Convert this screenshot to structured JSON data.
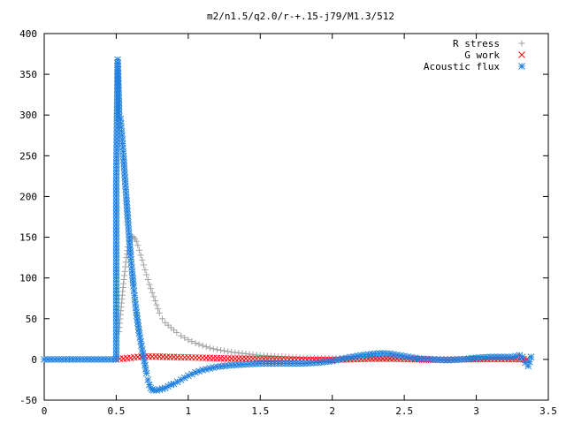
{
  "chart_data": {
    "type": "scatter",
    "title": "m2/n1.5/q2.0/r-+.15-j79/M1.3/512",
    "xlabel": "",
    "ylabel": "",
    "xlim": [
      0,
      3.5
    ],
    "ylim": [
      -50,
      400
    ],
    "xticks": [
      "0",
      "0.5",
      "1",
      "1.5",
      "2",
      "2.5",
      "3",
      "3.5"
    ],
    "yticks": [
      "-50",
      "0",
      "50",
      "100",
      "150",
      "200",
      "250",
      "300",
      "350",
      "400"
    ],
    "grid": false,
    "legend_position": "top-right",
    "series": [
      {
        "name": "R stress",
        "marker": "plus",
        "color": "#a0a0a0",
        "points": [
          [
            0.52,
            34
          ],
          [
            0.53,
            55
          ],
          [
            0.54,
            74
          ],
          [
            0.55,
            93
          ],
          [
            0.56,
            108
          ],
          [
            0.57,
            125
          ],
          [
            0.58,
            138
          ],
          [
            0.59,
            145
          ],
          [
            0.6,
            150
          ],
          [
            0.61,
            151
          ],
          [
            0.62,
            150
          ],
          [
            0.63,
            148
          ],
          [
            0.64,
            145
          ],
          [
            0.65,
            140
          ],
          [
            0.66,
            134
          ],
          [
            0.67,
            128
          ],
          [
            0.68,
            122
          ],
          [
            0.69,
            116
          ],
          [
            0.7,
            110
          ],
          [
            0.71,
            104
          ],
          [
            0.72,
            98
          ],
          [
            0.73,
            92
          ],
          [
            0.74,
            87
          ],
          [
            0.75,
            82
          ],
          [
            0.76,
            77
          ],
          [
            0.77,
            72
          ],
          [
            0.78,
            67
          ],
          [
            0.79,
            62
          ],
          [
            0.8,
            57
          ],
          [
            0.82,
            50
          ],
          [
            0.84,
            45
          ],
          [
            0.86,
            42
          ],
          [
            0.88,
            39
          ],
          [
            0.9,
            36
          ],
          [
            0.92,
            33
          ],
          [
            0.95,
            29
          ],
          [
            1.0,
            24
          ],
          [
            1.05,
            20
          ],
          [
            1.1,
            17
          ],
          [
            1.15,
            14
          ],
          [
            1.2,
            12
          ],
          [
            1.3,
            9
          ],
          [
            1.4,
            7
          ],
          [
            1.5,
            5
          ],
          [
            1.6,
            4
          ],
          [
            1.7,
            3
          ],
          [
            1.8,
            2
          ],
          [
            1.9,
            1.5
          ],
          [
            2.0,
            1.2
          ],
          [
            2.2,
            1
          ],
          [
            2.4,
            0.8
          ],
          [
            2.6,
            0.6
          ],
          [
            2.8,
            0.5
          ],
          [
            3.0,
            0.4
          ],
          [
            3.2,
            0.3
          ],
          [
            3.35,
            0.2
          ]
        ]
      },
      {
        "name": "G work",
        "marker": "cross",
        "color": "#ff0000",
        "points": [
          [
            0.5,
            0.5
          ],
          [
            0.55,
            1
          ],
          [
            0.6,
            2
          ],
          [
            0.65,
            3
          ],
          [
            0.7,
            3.5
          ],
          [
            0.75,
            3.5
          ],
          [
            0.8,
            3.5
          ],
          [
            0.85,
            3
          ],
          [
            0.9,
            3
          ],
          [
            0.95,
            2.5
          ],
          [
            1.0,
            2.5
          ],
          [
            1.1,
            2
          ],
          [
            1.2,
            1.5
          ],
          [
            1.3,
            1
          ],
          [
            1.4,
            1
          ],
          [
            1.5,
            0.5
          ],
          [
            1.6,
            0.3
          ],
          [
            1.7,
            0
          ],
          [
            1.8,
            -0.5
          ],
          [
            1.9,
            -0.5
          ],
          [
            2.0,
            -0.5
          ],
          [
            2.1,
            0
          ],
          [
            2.2,
            0.5
          ],
          [
            2.3,
            1
          ],
          [
            2.4,
            1
          ],
          [
            2.5,
            0.5
          ],
          [
            2.6,
            0
          ],
          [
            2.7,
            -0.5
          ],
          [
            2.8,
            -0.5
          ],
          [
            2.9,
            0
          ],
          [
            3.0,
            0.3
          ],
          [
            3.1,
            0.5
          ],
          [
            3.2,
            0.5
          ],
          [
            3.3,
            0.3
          ],
          [
            3.35,
            0
          ]
        ]
      },
      {
        "name": "Acoustic flux",
        "marker": "star",
        "color": "#2080e0",
        "points": [
          [
            0.0,
            0
          ],
          [
            0.1,
            0
          ],
          [
            0.2,
            0
          ],
          [
            0.3,
            0
          ],
          [
            0.4,
            0
          ],
          [
            0.5,
            0
          ],
          [
            0.5,
            218
          ],
          [
            0.51,
            368
          ],
          [
            0.52,
            307
          ],
          [
            0.52,
            298
          ],
          [
            0.53,
            295
          ],
          [
            0.54,
            275
          ],
          [
            0.55,
            250
          ],
          [
            0.56,
            223
          ],
          [
            0.57,
            199
          ],
          [
            0.58,
            173
          ],
          [
            0.59,
            150
          ],
          [
            0.6,
            128
          ],
          [
            0.61,
            108
          ],
          [
            0.62,
            90
          ],
          [
            0.63,
            73
          ],
          [
            0.64,
            58
          ],
          [
            0.65,
            45
          ],
          [
            0.66,
            32
          ],
          [
            0.67,
            22
          ],
          [
            0.68,
            12
          ],
          [
            0.69,
            3
          ],
          [
            0.7,
            -7
          ],
          [
            0.71,
            -17
          ],
          [
            0.72,
            -25
          ],
          [
            0.73,
            -31
          ],
          [
            0.74,
            -35
          ],
          [
            0.75,
            -37
          ],
          [
            0.76,
            -38
          ],
          [
            0.78,
            -38
          ],
          [
            0.8,
            -37
          ],
          [
            0.82,
            -36
          ],
          [
            0.84,
            -35
          ],
          [
            0.86,
            -33
          ],
          [
            0.88,
            -31
          ],
          [
            0.9,
            -30
          ],
          [
            0.95,
            -25
          ],
          [
            1.0,
            -20
          ],
          [
            1.05,
            -16
          ],
          [
            1.1,
            -13
          ],
          [
            1.2,
            -9
          ],
          [
            1.3,
            -7
          ],
          [
            1.4,
            -6
          ],
          [
            1.5,
            -5
          ],
          [
            1.6,
            -5
          ],
          [
            1.7,
            -5
          ],
          [
            1.8,
            -5
          ],
          [
            1.9,
            -4
          ],
          [
            2.0,
            -2
          ],
          [
            2.1,
            2
          ],
          [
            2.2,
            5
          ],
          [
            2.3,
            7
          ],
          [
            2.35,
            7.5
          ],
          [
            2.4,
            7
          ],
          [
            2.5,
            4
          ],
          [
            2.6,
            1
          ],
          [
            2.7,
            0
          ],
          [
            2.8,
            -1
          ],
          [
            2.9,
            0
          ],
          [
            3.0,
            2
          ],
          [
            3.1,
            3
          ],
          [
            3.2,
            3
          ],
          [
            3.25,
            3
          ],
          [
            3.3,
            5
          ],
          [
            3.32,
            3
          ],
          [
            3.34,
            -4
          ],
          [
            3.36,
            -8
          ],
          [
            3.37,
            -3
          ],
          [
            3.38,
            3
          ]
        ]
      }
    ]
  }
}
